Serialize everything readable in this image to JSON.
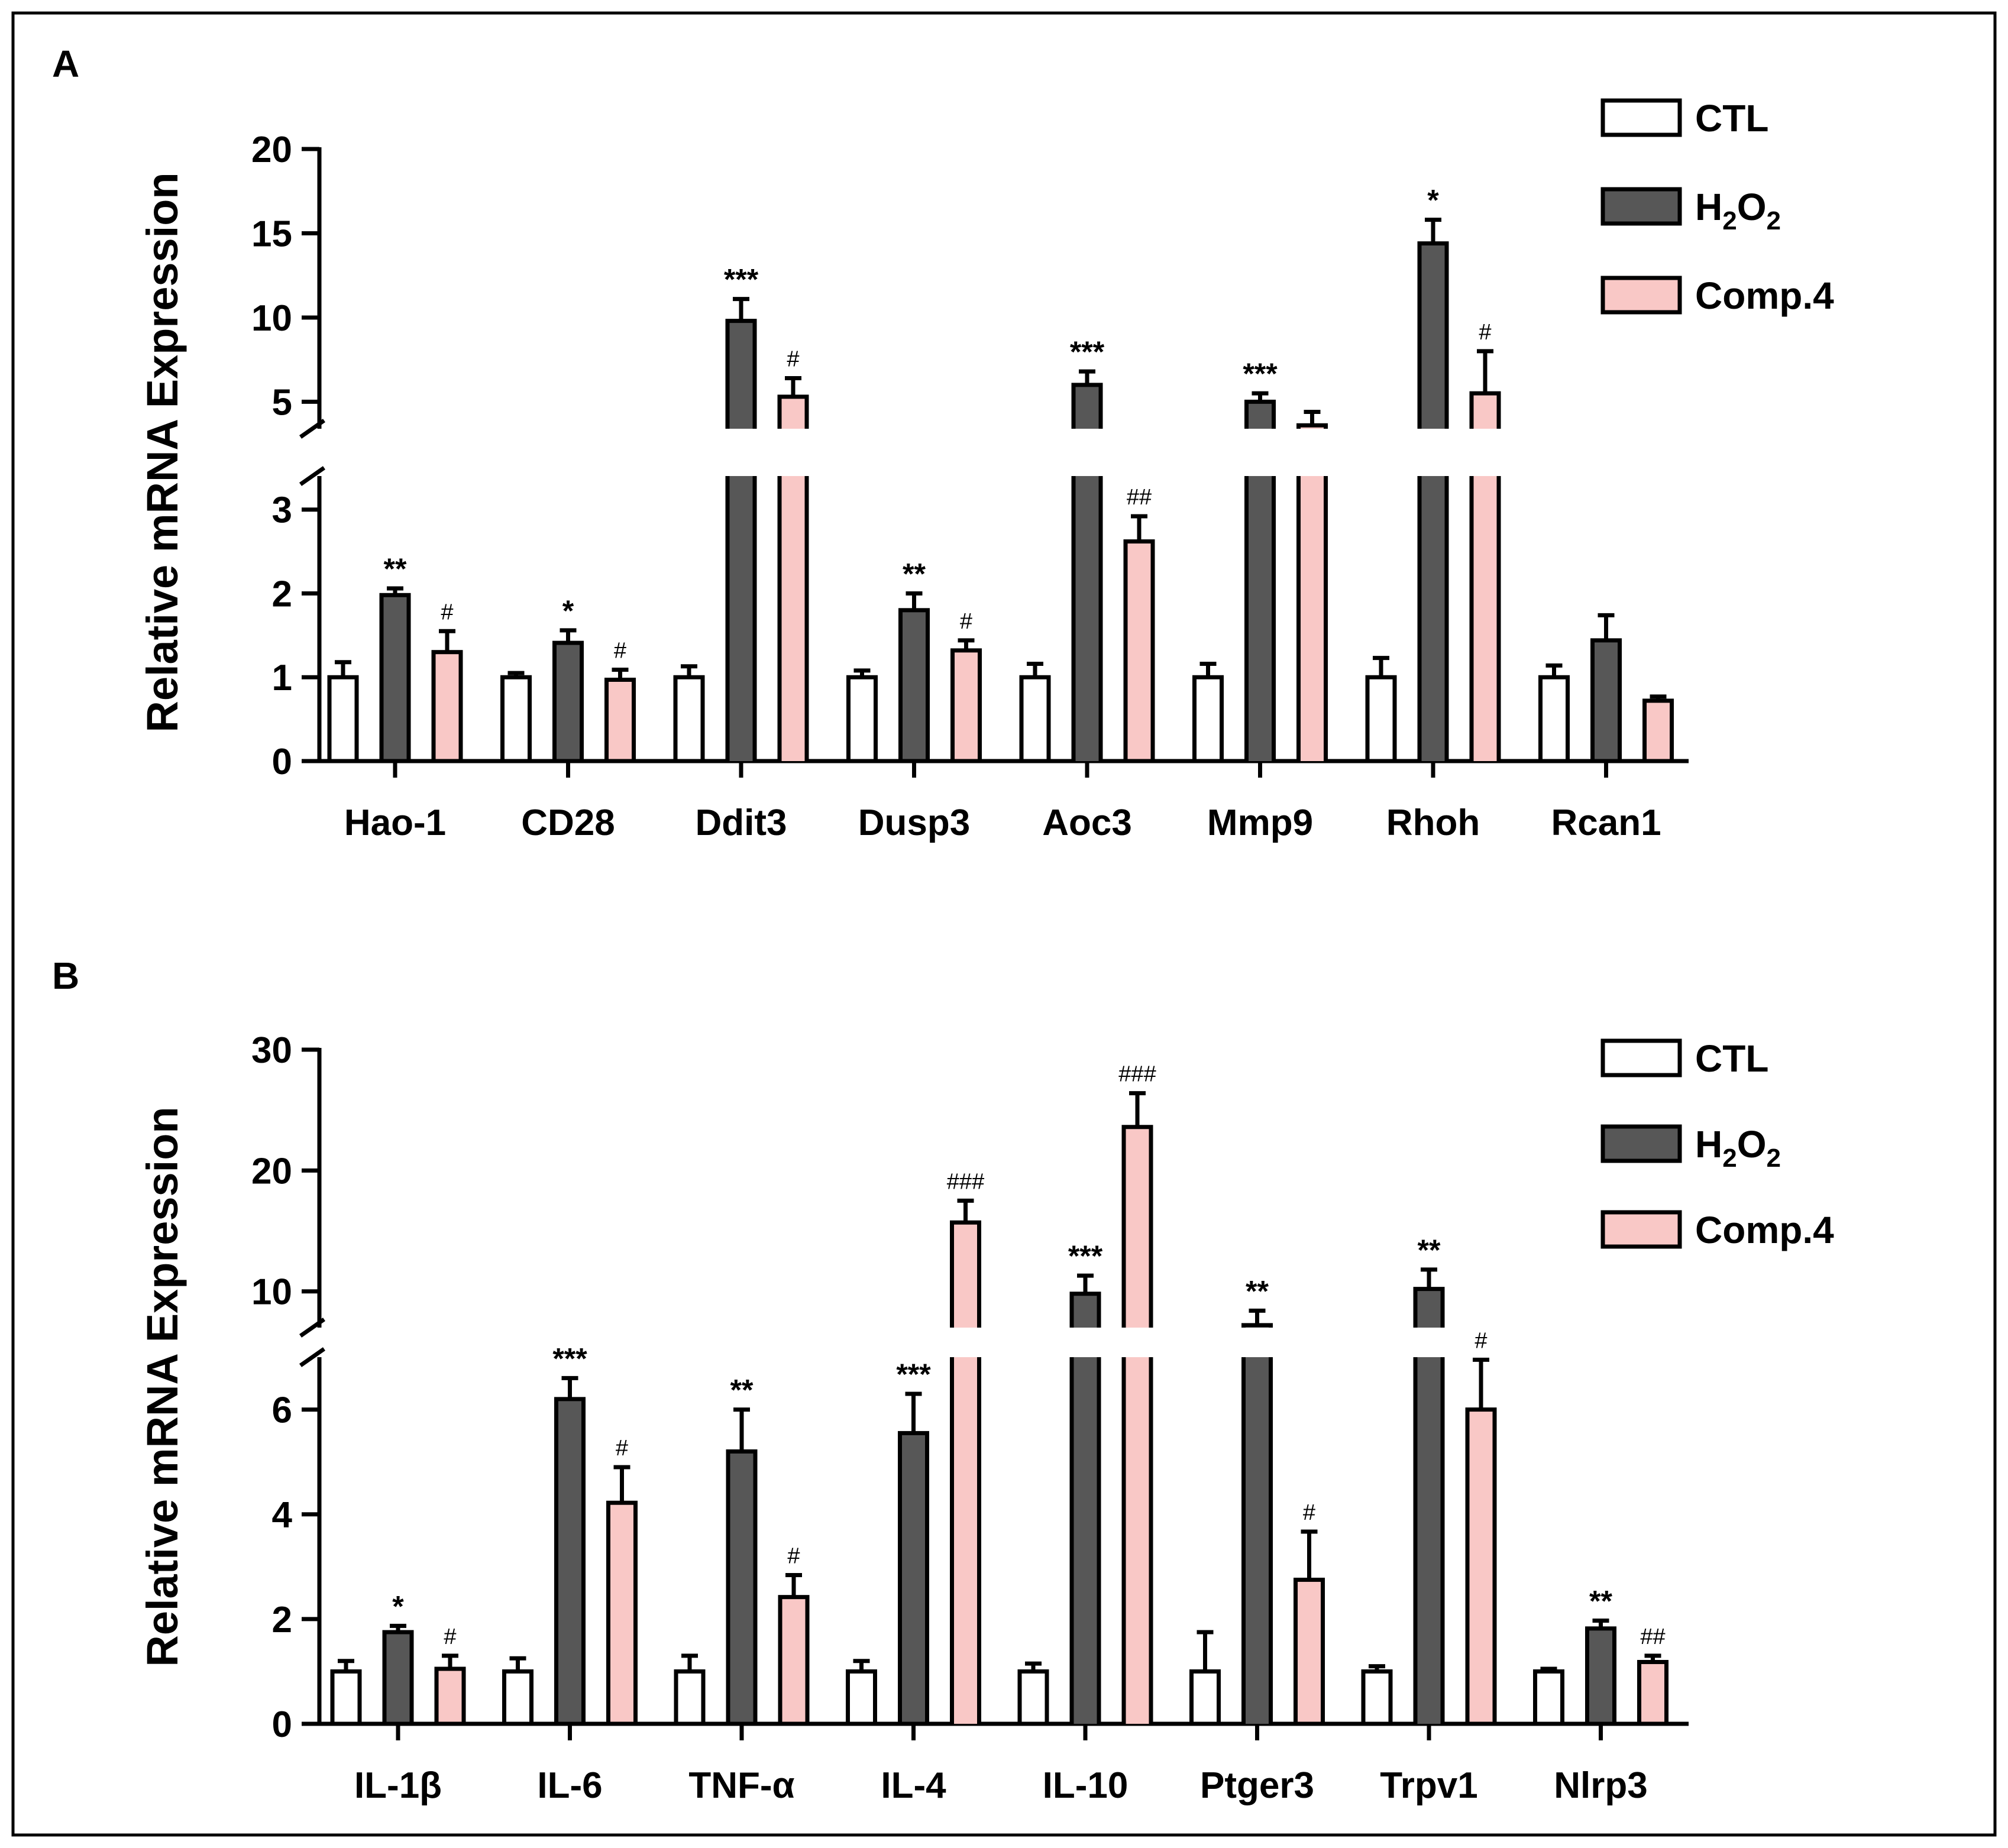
{
  "colors": {
    "CTL": "#ffffff",
    "H2O2": "#575757",
    "Comp.4": "#f9c8c6",
    "stroke": "#000000"
  },
  "chart_data": [
    {
      "type": "bar",
      "panel_label": "A",
      "ylabel": "Relative mRNA Expression",
      "axis_break": {
        "lower_range": [
          0,
          3.4
        ],
        "upper_range": [
          3.4,
          20
        ],
        "lower_ticks": [
          0,
          1,
          2,
          3
        ],
        "upper_ticks": [
          5,
          10,
          15,
          20
        ]
      },
      "legend": [
        {
          "key": "CTL",
          "label": "CTL"
        },
        {
          "key": "H2O2",
          "label": "H",
          "sub": "2",
          "mid": "O",
          "sub2": "2"
        },
        {
          "key": "Comp.4",
          "label": "Comp.4"
        }
      ],
      "legend_position": "top-right",
      "categories": [
        "Hao-1",
        "CD28",
        "Ddit3",
        "Dusp3",
        "Aoc3",
        "Mmp9",
        "Rhoh",
        "Rcan1"
      ],
      "series": [
        {
          "name": "CTL",
          "key": "CTL",
          "values": [
            1.0,
            1.0,
            1.0,
            1.0,
            1.0,
            1.0,
            1.0,
            1.0
          ],
          "errors": [
            0.18,
            0.05,
            0.13,
            0.08,
            0.16,
            0.16,
            0.23,
            0.14
          ],
          "annotations": [
            "",
            "",
            "",
            "",
            "",
            "",
            "",
            ""
          ]
        },
        {
          "name": "H2O2",
          "key": "H2O2",
          "values": [
            1.98,
            1.41,
            9.8,
            1.8,
            6.0,
            5.0,
            14.4,
            1.44
          ],
          "errors": [
            0.08,
            0.15,
            1.3,
            0.2,
            0.8,
            0.5,
            1.4,
            0.3
          ],
          "annotations": [
            "**",
            "*",
            "***",
            "**",
            "***",
            "***",
            "*",
            ""
          ]
        },
        {
          "name": "Comp.4",
          "key": "Comp.4",
          "values": [
            1.3,
            0.97,
            5.3,
            1.32,
            2.62,
            3.6,
            5.5,
            0.72
          ],
          "errors": [
            0.25,
            0.12,
            1.1,
            0.12,
            0.3,
            0.8,
            2.5,
            0.05
          ],
          "annotations": [
            "#",
            "#",
            "#",
            "#",
            "##",
            "",
            "#",
            ""
          ]
        }
      ]
    },
    {
      "type": "bar",
      "panel_label": "B",
      "ylabel": "Relative mRNA Expression",
      "axis_break": {
        "lower_range": [
          0,
          7
        ],
        "upper_range": [
          7,
          30
        ],
        "lower_ticks": [
          0,
          2,
          4,
          6
        ],
        "upper_ticks": [
          10,
          20,
          30
        ]
      },
      "legend": [
        {
          "key": "CTL",
          "label": "CTL"
        },
        {
          "key": "H2O2",
          "label": "H",
          "sub": "2",
          "mid": "O",
          "sub2": "2"
        },
        {
          "key": "Comp.4",
          "label": "Comp.4"
        }
      ],
      "legend_position": "top-right",
      "categories": [
        "IL-1β",
        "IL-6",
        "TNF-α",
        "IL-4",
        "IL-10",
        "Ptger3",
        "Trpv1",
        "Nlrp3"
      ],
      "series": [
        {
          "name": "CTL",
          "key": "CTL",
          "values": [
            1.0,
            1.0,
            1.0,
            1.0,
            1.0,
            1.0,
            1.0,
            1.0
          ],
          "errors": [
            0.2,
            0.25,
            0.3,
            0.2,
            0.15,
            0.75,
            0.1,
            0.05
          ],
          "annotations": [
            "",
            "",
            "",
            "",
            "",
            "",
            "",
            ""
          ]
        },
        {
          "name": "H2O2",
          "key": "H2O2",
          "values": [
            1.75,
            6.2,
            5.2,
            5.55,
            9.8,
            7.2,
            10.2,
            1.82
          ],
          "errors": [
            0.12,
            0.4,
            0.8,
            0.75,
            1.5,
            1.2,
            1.6,
            0.15
          ],
          "annotations": [
            "*",
            "***",
            "**",
            "***",
            "***",
            "**",
            "**",
            "**"
          ]
        },
        {
          "name": "Comp.4",
          "key": "Comp.4",
          "values": [
            1.05,
            4.22,
            2.42,
            15.7,
            23.6,
            2.75,
            6.0,
            1.18
          ],
          "errors": [
            0.25,
            0.68,
            0.42,
            1.8,
            2.8,
            0.92,
            0.95,
            0.12
          ],
          "annotations": [
            "#",
            "#",
            "#",
            "###",
            "###",
            "#",
            "#",
            "##"
          ]
        }
      ]
    }
  ]
}
